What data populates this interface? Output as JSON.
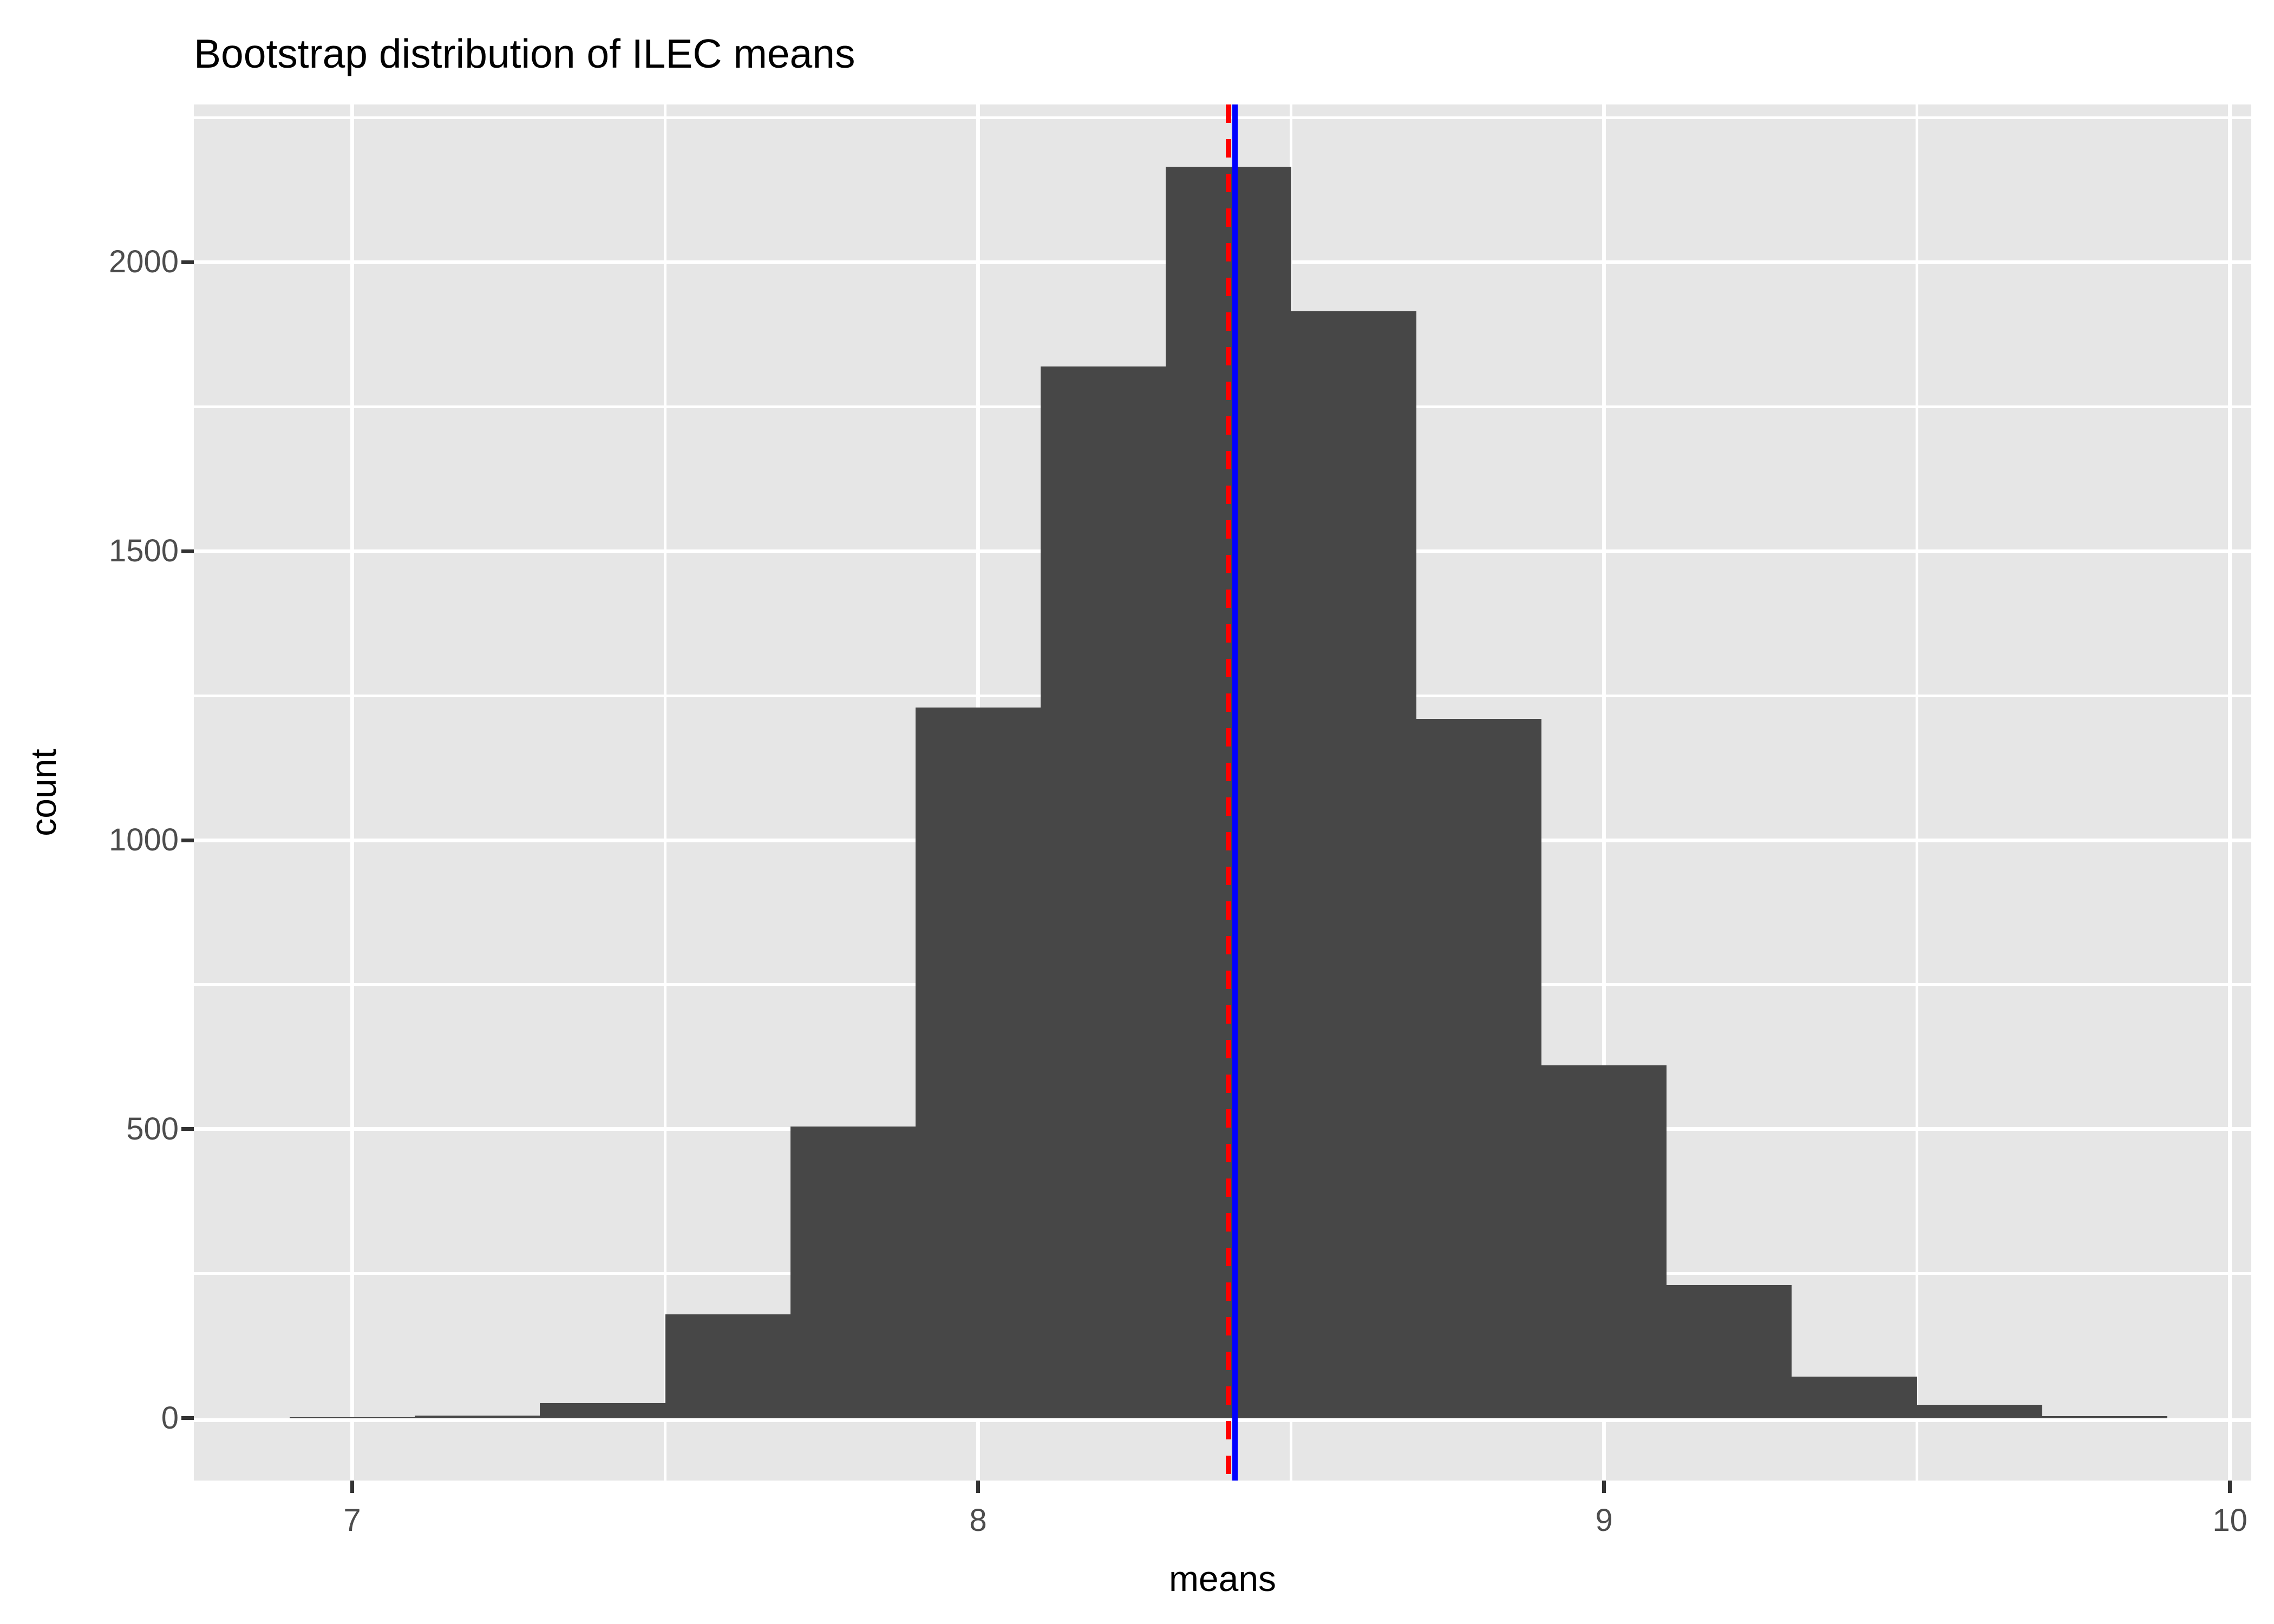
{
  "title": "Bootstrap distribution of ILEC means",
  "chart_data": {
    "type": "bar",
    "subtype": "histogram",
    "title": "Bootstrap distribution of ILEC means",
    "xlabel": "means",
    "ylabel": "count",
    "bin_start": 6.9,
    "bin_width": 0.2,
    "bin_edges": [
      6.9,
      7.1,
      7.3,
      7.5,
      7.7,
      7.9,
      8.1,
      8.3,
      8.5,
      8.7,
      8.9,
      9.1,
      9.3,
      9.5,
      9.7,
      9.9
    ],
    "counts": [
      2,
      4,
      26,
      180,
      505,
      1230,
      1820,
      2165,
      1915,
      1210,
      610,
      230,
      72,
      23,
      3
    ],
    "x_ticks": [
      7,
      8,
      9,
      10
    ],
    "y_ticks": [
      0,
      500,
      1000,
      1500,
      2000
    ],
    "x_minor_ticks": [
      7.5,
      8.5,
      9.5
    ],
    "y_minor_ticks": [
      250,
      750,
      1250,
      1750,
      2250
    ],
    "x_range": [
      6.747,
      10.034
    ],
    "y_range": [
      -108,
      2273
    ],
    "ylim": [
      0,
      2165
    ],
    "grid": "on",
    "legend": "none",
    "vlines": [
      {
        "name": "sample-mean-line",
        "x": 8.41,
        "color": "#0000FF",
        "style": "solid"
      },
      {
        "name": "bootstrap-mean-line",
        "x": 8.4,
        "color": "#FF0000",
        "style": "dashed"
      }
    ],
    "colors": {
      "bar_fill": "#474747",
      "panel_background": "#E6E6E6",
      "gridline": "#FFFFFF",
      "tick_mark": "#333333",
      "tick_label": "#4D4D4D",
      "text": "#000000"
    }
  }
}
